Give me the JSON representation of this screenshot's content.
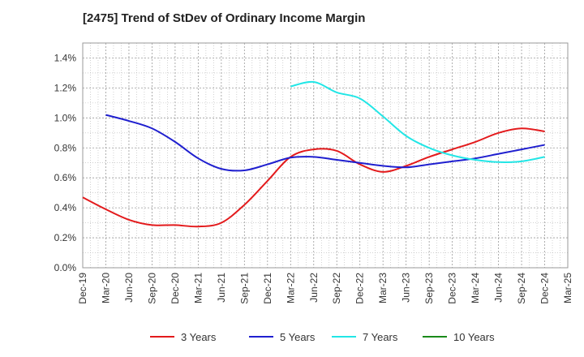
{
  "chart_data": {
    "type": "line",
    "title": "[2475]  Trend of StDev of Ordinary Income Margin",
    "xlabel": "",
    "ylabel": "",
    "ylim": [
      0,
      1.5
    ],
    "y_ticks": [
      "0.0%",
      "0.2%",
      "0.4%",
      "0.6%",
      "0.8%",
      "1.0%",
      "1.2%",
      "1.4%"
    ],
    "y_tick_values": [
      0,
      0.2,
      0.4,
      0.6,
      0.8,
      1.0,
      1.2,
      1.4
    ],
    "categories": [
      "Dec-19",
      "Mar-20",
      "Jun-20",
      "Sep-20",
      "Dec-20",
      "Mar-21",
      "Jun-21",
      "Sep-21",
      "Dec-21",
      "Mar-22",
      "Jun-22",
      "Sep-22",
      "Dec-22",
      "Mar-23",
      "Jun-23",
      "Sep-23",
      "Dec-23",
      "Mar-24",
      "Jun-24",
      "Sep-24",
      "Dec-24",
      "Mar-25"
    ],
    "grid": true,
    "legend_position": "bottom",
    "series": [
      {
        "name": "3 Years",
        "color": "#e31a1c",
        "values": [
          0.47,
          0.39,
          0.32,
          0.285,
          0.285,
          0.275,
          0.3,
          0.42,
          0.58,
          0.74,
          0.79,
          0.78,
          0.69,
          0.64,
          0.68,
          0.74,
          0.79,
          0.84,
          0.9,
          0.93,
          0.91,
          null
        ]
      },
      {
        "name": "5 Years",
        "color": "#1f1fcf",
        "values": [
          null,
          1.02,
          0.98,
          0.93,
          0.84,
          0.73,
          0.66,
          0.65,
          0.69,
          0.735,
          0.74,
          0.72,
          0.7,
          0.68,
          0.67,
          0.69,
          0.71,
          0.73,
          0.76,
          0.79,
          0.82,
          null
        ]
      },
      {
        "name": "7 Years",
        "color": "#22e6e6",
        "values": [
          null,
          null,
          null,
          null,
          null,
          null,
          null,
          null,
          null,
          1.21,
          1.24,
          1.17,
          1.13,
          1.01,
          0.88,
          0.8,
          0.75,
          0.72,
          0.705,
          0.71,
          0.74,
          null
        ]
      },
      {
        "name": "10 Years",
        "color": "#1a8a1a",
        "values": [
          null,
          null,
          null,
          null,
          null,
          null,
          null,
          null,
          null,
          null,
          null,
          null,
          null,
          null,
          null,
          null,
          null,
          null,
          null,
          null,
          null,
          null
        ]
      }
    ]
  }
}
